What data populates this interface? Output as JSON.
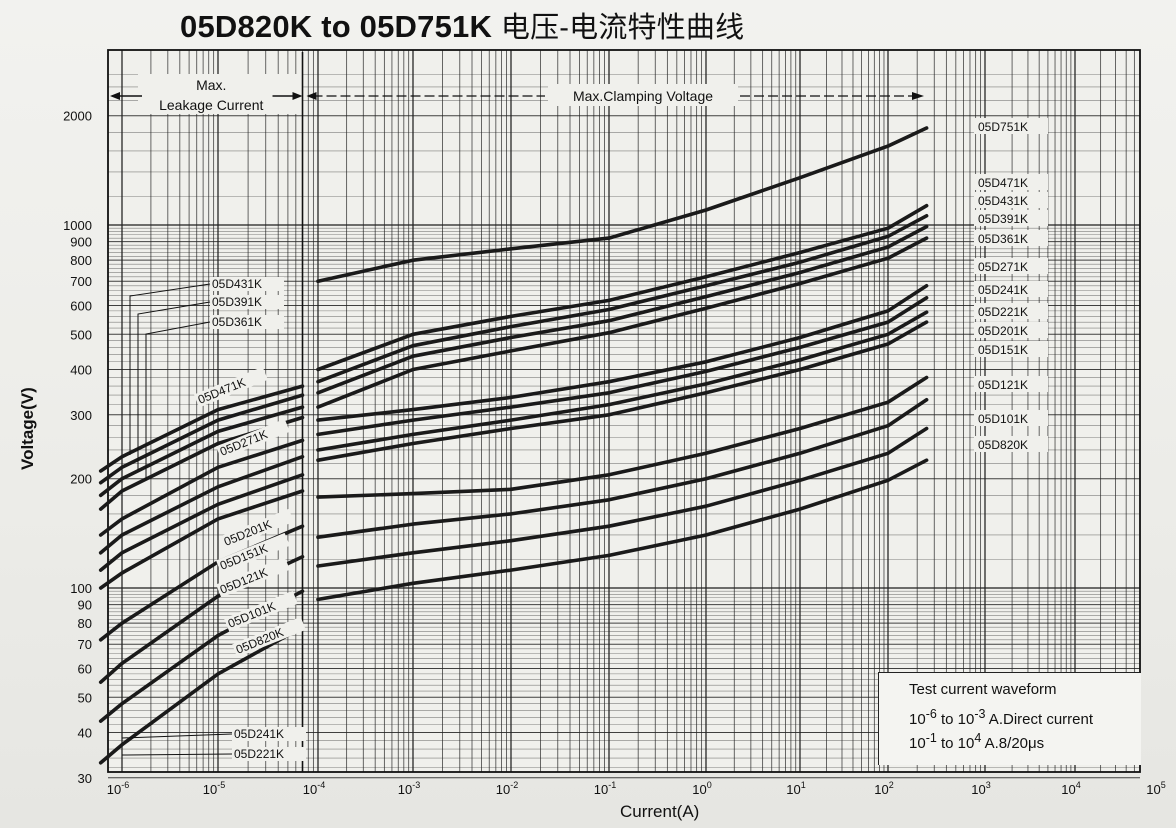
{
  "chart_data": {
    "type": "line",
    "title": "05D820K to 05D751K",
    "title_cn": "电压-电流特性曲线",
    "xlabel": "Current(A)",
    "ylabel": "Voltage(V)",
    "xscale": "log",
    "yscale": "log",
    "xlim": [
      5e-07,
      100000
    ],
    "ylim": [
      30,
      2600
    ],
    "grid": true,
    "x_ticks": [
      {
        "value": 1e-06,
        "label": "10^-6"
      },
      {
        "value": 1e-05,
        "label": "10^-5"
      },
      {
        "value": 0.0001,
        "label": "10^-4"
      },
      {
        "value": 0.001,
        "label": "10^-3"
      },
      {
        "value": 0.01,
        "label": "10^-2"
      },
      {
        "value": 0.1,
        "label": "10^-1"
      },
      {
        "value": 1,
        "label": "10^0"
      },
      {
        "value": 10,
        "label": "10^1"
      },
      {
        "value": 100,
        "label": "10^2"
      },
      {
        "value": 1000,
        "label": "10^3"
      },
      {
        "value": 10000,
        "label": "10^4"
      },
      {
        "value": 100000,
        "label": "10^5"
      }
    ],
    "y_ticks": [
      30,
      40,
      50,
      60,
      70,
      80,
      90,
      100,
      200,
      300,
      400,
      500,
      600,
      700,
      800,
      900,
      1000,
      2000
    ],
    "y_tick_labels": [
      "30",
      "40",
      "50",
      "60",
      "70",
      "80",
      "90",
      "100",
      "200",
      "300",
      "400",
      "500",
      "600",
      "700",
      "800",
      "900",
      "1000",
      "2000"
    ],
    "regions": {
      "leakage_label_line1": "Max.",
      "leakage_label_line2": "Leakage Current",
      "clamping_label": "Max.Clamping Voltage"
    },
    "series": [
      {
        "name": "05D751K",
        "leakage": [
          [
            7e-05,
            680
          ]
        ],
        "clamp": [
          [
            0.0001,
            700
          ],
          [
            0.001,
            800
          ],
          [
            0.01,
            860
          ],
          [
            0.1,
            920
          ],
          [
            1,
            1100
          ],
          [
            10,
            1350
          ],
          [
            100,
            1650
          ],
          [
            250,
            1850
          ]
        ]
      },
      {
        "name": "05D471K",
        "leakage": [
          [
            6e-07,
            210
          ],
          [
            1e-06,
            230
          ],
          [
            1e-05,
            310
          ],
          [
            7e-05,
            360
          ]
        ],
        "clamp": [
          [
            0.0001,
            400
          ],
          [
            0.001,
            500
          ],
          [
            0.01,
            560
          ],
          [
            0.1,
            620
          ],
          [
            1,
            720
          ],
          [
            10,
            840
          ],
          [
            100,
            980
          ],
          [
            250,
            1130
          ]
        ]
      },
      {
        "name": "05D431K",
        "leakage": [
          [
            6e-07,
            195
          ],
          [
            1e-06,
            215
          ],
          [
            1e-05,
            290
          ],
          [
            7e-05,
            340
          ]
        ],
        "clamp": [
          [
            0.0001,
            370
          ],
          [
            0.001,
            465
          ],
          [
            0.01,
            525
          ],
          [
            0.1,
            585
          ],
          [
            1,
            680
          ],
          [
            10,
            790
          ],
          [
            100,
            930
          ],
          [
            250,
            1060
          ]
        ]
      },
      {
        "name": "05D391K",
        "leakage": [
          [
            6e-07,
            180
          ],
          [
            1e-06,
            200
          ],
          [
            1e-05,
            270
          ],
          [
            7e-05,
            315
          ]
        ],
        "clamp": [
          [
            0.0001,
            345
          ],
          [
            0.001,
            435
          ],
          [
            0.01,
            490
          ],
          [
            0.1,
            545
          ],
          [
            1,
            635
          ],
          [
            10,
            740
          ],
          [
            100,
            870
          ],
          [
            250,
            990
          ]
        ]
      },
      {
        "name": "05D361K",
        "leakage": [
          [
            6e-07,
            165
          ],
          [
            1e-06,
            185
          ],
          [
            1e-05,
            250
          ],
          [
            7e-05,
            295
          ]
        ],
        "clamp": [
          [
            0.0001,
            315
          ],
          [
            0.001,
            400
          ],
          [
            0.01,
            450
          ],
          [
            0.1,
            505
          ],
          [
            1,
            590
          ],
          [
            10,
            690
          ],
          [
            100,
            810
          ],
          [
            250,
            920
          ]
        ]
      },
      {
        "name": "05D271K",
        "leakage": [
          [
            6e-07,
            140
          ],
          [
            1e-06,
            155
          ],
          [
            1e-05,
            215
          ],
          [
            7e-05,
            255
          ]
        ],
        "clamp": [
          [
            0.0001,
            290
          ],
          [
            0.001,
            310
          ],
          [
            0.01,
            335
          ],
          [
            0.1,
            370
          ],
          [
            1,
            420
          ],
          [
            10,
            490
          ],
          [
            100,
            580
          ],
          [
            250,
            680
          ]
        ]
      },
      {
        "name": "05D241K",
        "leakage": [
          [
            6e-07,
            125
          ],
          [
            1e-06,
            140
          ],
          [
            1e-05,
            190
          ],
          [
            7e-05,
            230
          ]
        ],
        "clamp": [
          [
            0.0001,
            265
          ],
          [
            0.001,
            290
          ],
          [
            0.01,
            315
          ],
          [
            0.1,
            345
          ],
          [
            1,
            395
          ],
          [
            10,
            460
          ],
          [
            100,
            540
          ],
          [
            250,
            630
          ]
        ]
      },
      {
        "name": "05D221K",
        "leakage": [
          [
            6e-07,
            112
          ],
          [
            1e-06,
            125
          ],
          [
            1e-05,
            170
          ],
          [
            7e-05,
            205
          ]
        ],
        "clamp": [
          [
            0.0001,
            240
          ],
          [
            0.001,
            265
          ],
          [
            0.01,
            290
          ],
          [
            0.1,
            320
          ],
          [
            1,
            365
          ],
          [
            10,
            425
          ],
          [
            100,
            500
          ],
          [
            250,
            575
          ]
        ]
      },
      {
        "name": "05D201K",
        "leakage": [
          [
            6e-07,
            100
          ],
          [
            1e-06,
            110
          ],
          [
            1e-05,
            155
          ],
          [
            7e-05,
            185
          ]
        ],
        "clamp": [
          [
            0.0001,
            225
          ],
          [
            0.001,
            250
          ],
          [
            0.01,
            275
          ],
          [
            0.1,
            300
          ],
          [
            1,
            345
          ],
          [
            10,
            400
          ],
          [
            100,
            470
          ],
          [
            250,
            540
          ]
        ]
      },
      {
        "name": "05D151K",
        "leakage": [
          [
            6e-07,
            72
          ],
          [
            1e-06,
            80
          ],
          [
            1e-05,
            118
          ],
          [
            7e-05,
            148
          ]
        ],
        "clamp": [
          [
            0.0001,
            178
          ],
          [
            0.001,
            182
          ],
          [
            0.01,
            187
          ],
          [
            0.1,
            205
          ],
          [
            1,
            235
          ],
          [
            10,
            275
          ],
          [
            100,
            325
          ],
          [
            250,
            380
          ]
        ]
      },
      {
        "name": "05D121K",
        "leakage": [
          [
            6e-07,
            55
          ],
          [
            1e-06,
            62
          ],
          [
            1e-05,
            95
          ],
          [
            7e-05,
            122
          ]
        ],
        "clamp": [
          [
            0.0001,
            138
          ],
          [
            0.001,
            150
          ],
          [
            0.01,
            160
          ],
          [
            0.1,
            175
          ],
          [
            1,
            200
          ],
          [
            10,
            235
          ],
          [
            100,
            280
          ],
          [
            250,
            330
          ]
        ]
      },
      {
        "name": "05D101K",
        "leakage": [
          [
            6e-07,
            43
          ],
          [
            1e-06,
            48
          ],
          [
            1e-05,
            74
          ],
          [
            7e-05,
            98
          ]
        ],
        "clamp": [
          [
            0.0001,
            115
          ],
          [
            0.001,
            125
          ],
          [
            0.01,
            135
          ],
          [
            0.1,
            148
          ],
          [
            1,
            168
          ],
          [
            10,
            198
          ],
          [
            100,
            235
          ],
          [
            250,
            275
          ]
        ]
      },
      {
        "name": "05D820K",
        "leakage": [
          [
            6e-07,
            33
          ],
          [
            1e-06,
            37
          ],
          [
            1e-05,
            58
          ],
          [
            7e-05,
            78
          ]
        ],
        "clamp": [
          [
            0.0001,
            93
          ],
          [
            0.001,
            103
          ],
          [
            0.01,
            112
          ],
          [
            0.1,
            123
          ],
          [
            1,
            140
          ],
          [
            10,
            165
          ],
          [
            100,
            198
          ],
          [
            250,
            225
          ]
        ]
      }
    ],
    "left_labels": [
      "05D431K",
      "05D391K",
      "05D361K",
      "05D471K",
      "05D271K",
      "05D201K",
      "05D151K",
      "05D121K",
      "05D101K",
      "05D820K",
      "05D241K",
      "05D221K"
    ],
    "right_labels": [
      "05D751K",
      "05D471K",
      "05D431K",
      "05D391K",
      "05D361K",
      "05D271K",
      "05D241K",
      "05D221K",
      "05D201K",
      "05D151K",
      "05D121K",
      "05D101K",
      "05D820K"
    ],
    "test_waveform": {
      "title": "Test current waveform",
      "line1_pre": "10",
      "line1_sup1": "-6",
      "line1_mid": " to 10",
      "line1_sup2": "-3",
      "line1_post": " A.Direct current",
      "line2_pre": "10",
      "line2_sup1": "-1",
      "line2_mid": " to 10",
      "line2_sup2": "4",
      "line2_post": " A.8/20μs"
    },
    "style": {
      "curve_color": "#1a1a1a",
      "grid_color": "#222222",
      "paper_color": "#f0f0ec"
    }
  }
}
